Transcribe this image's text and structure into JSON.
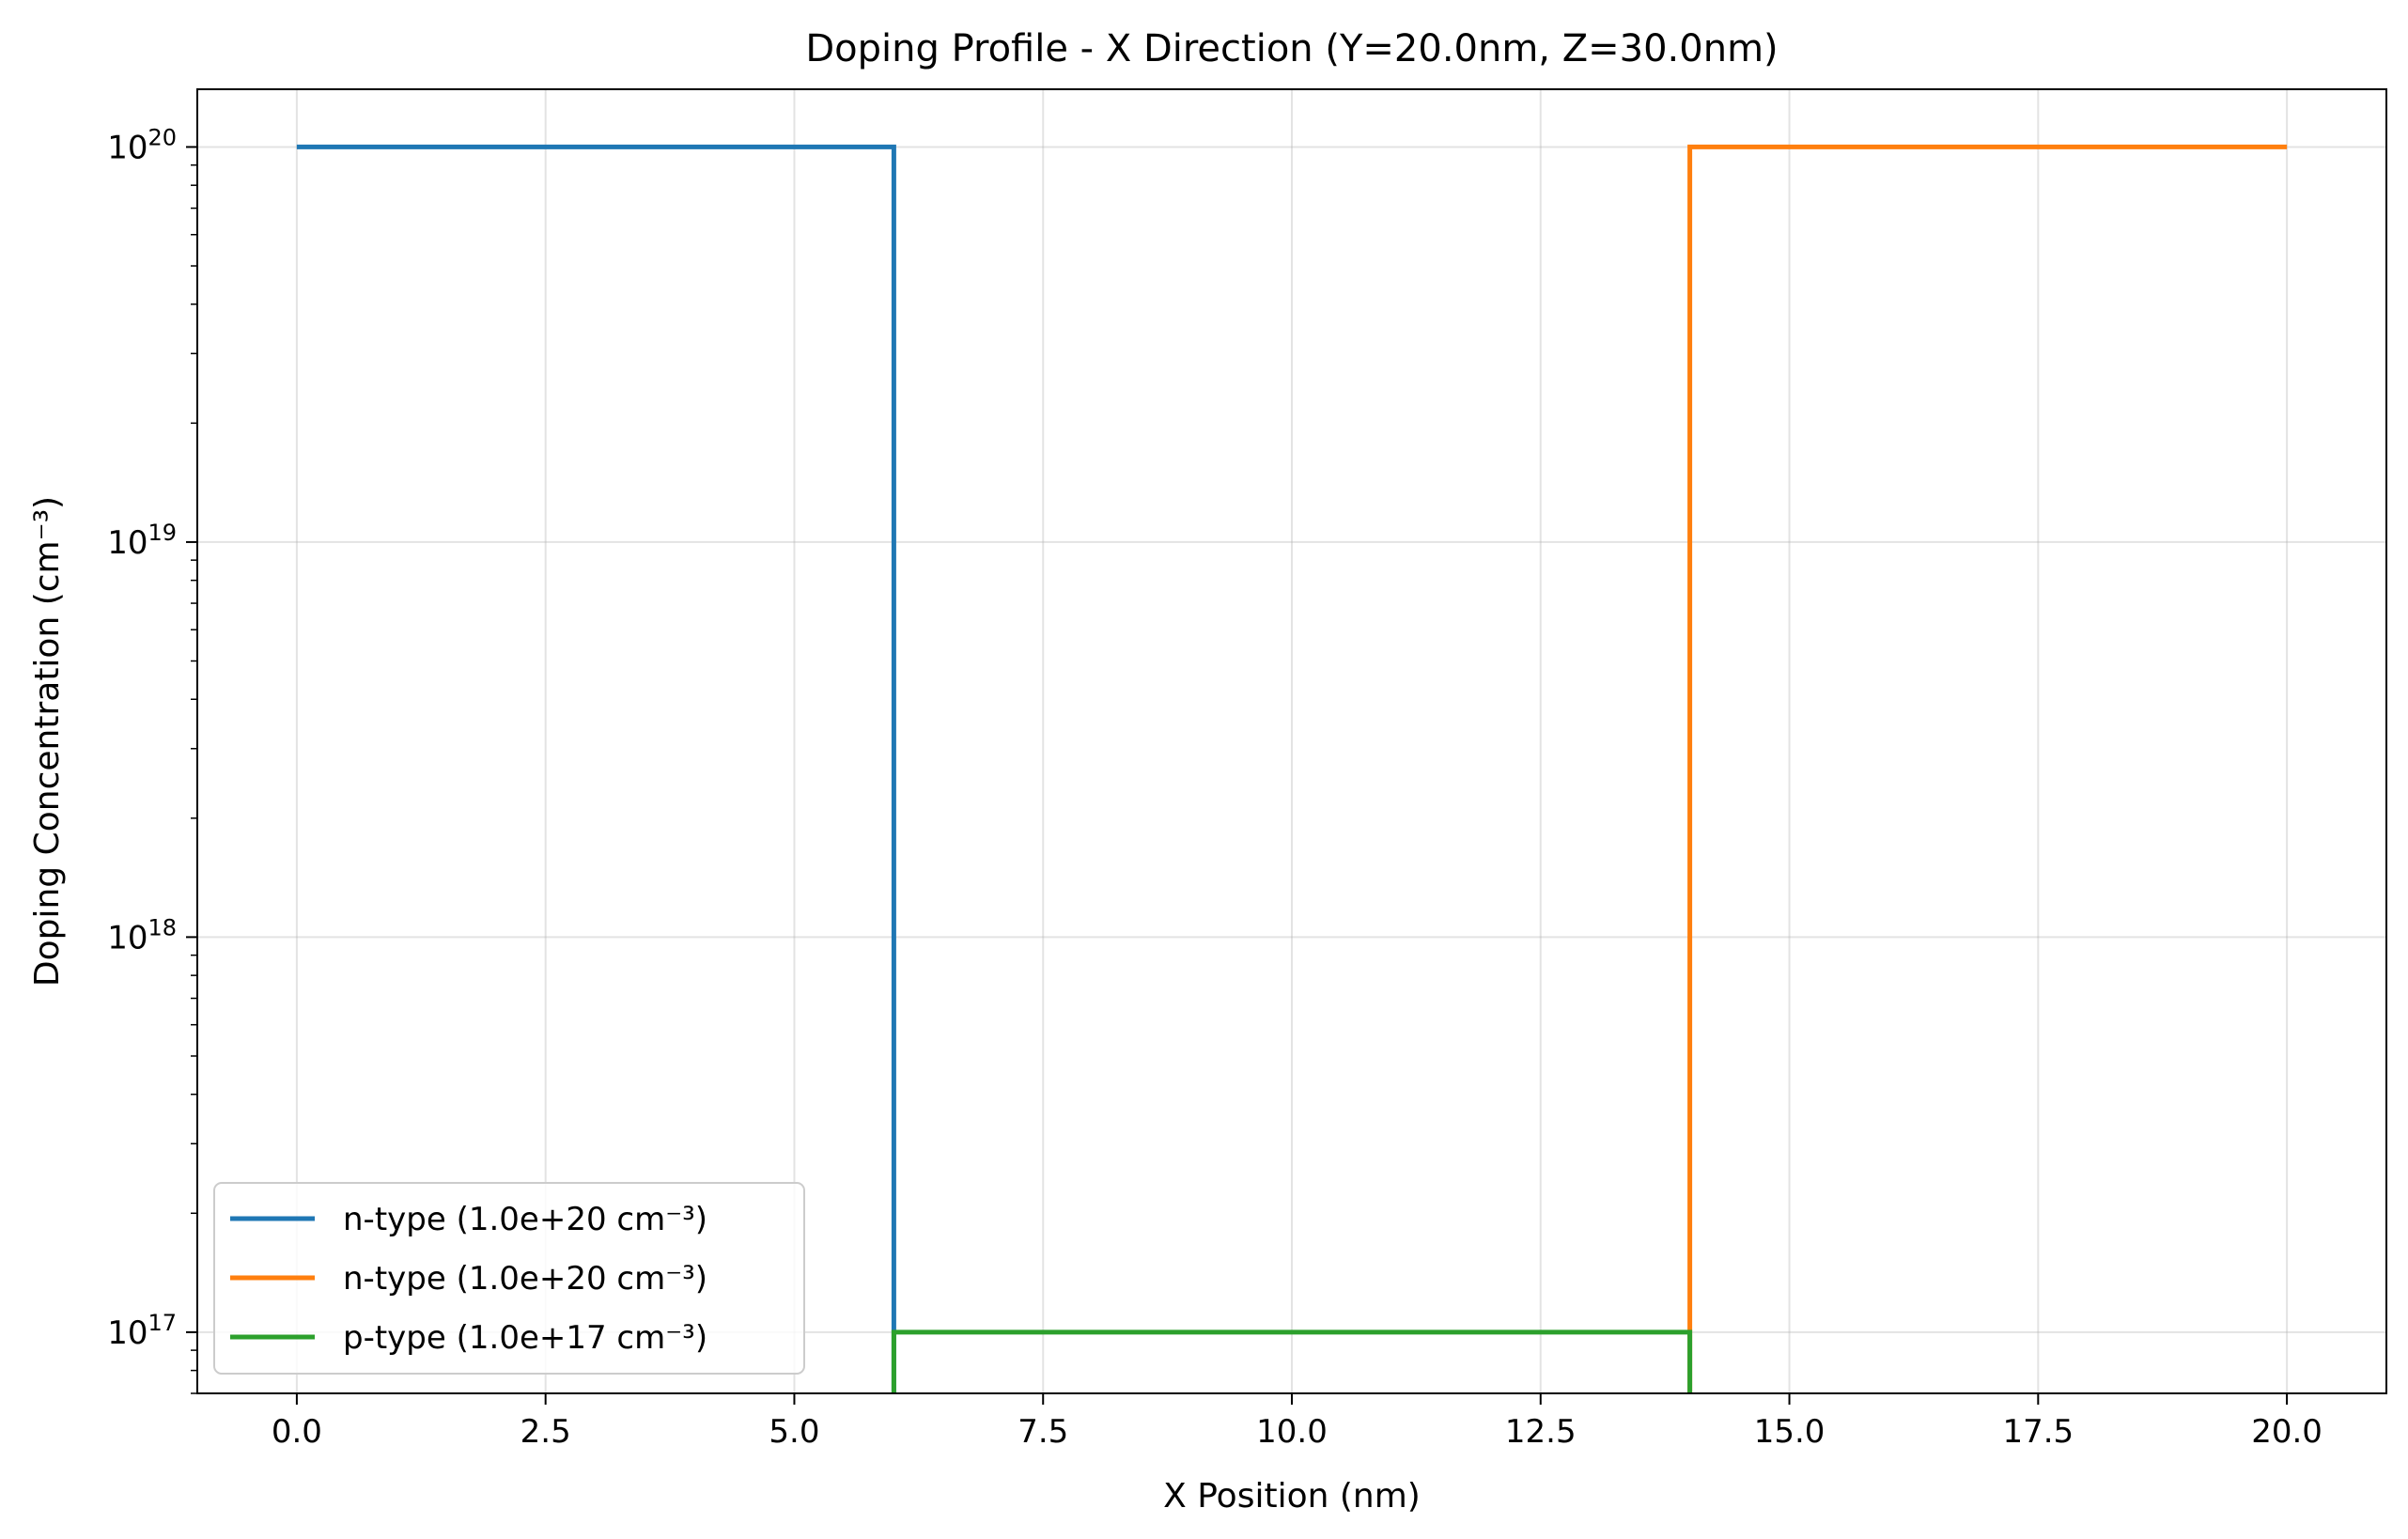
{
  "chart_data": {
    "type": "line",
    "title": "Doping Profile - X Direction (Y=20.0nm, Z=30.0nm)",
    "xlabel": "X Position (nm)",
    "ylabel": "Doping Concentration (cm⁻³)",
    "xscale": "linear",
    "yscale": "log",
    "xlim": [
      -1.0,
      21.0
    ],
    "ylim": [
      7e+16,
      1.4e+20
    ],
    "xticks": [
      0.0,
      2.5,
      5.0,
      7.5,
      10.0,
      12.5,
      15.0,
      17.5,
      20.0
    ],
    "xtick_labels": [
      "0.0",
      "2.5",
      "5.0",
      "7.5",
      "10.0",
      "12.5",
      "15.0",
      "17.5",
      "20.0"
    ],
    "yticks": [
      1e+17,
      1e+18,
      1e+19,
      1e+20
    ],
    "ytick_labels": [
      {
        "base": "10",
        "exp": "17"
      },
      {
        "base": "10",
        "exp": "18"
      },
      {
        "base": "10",
        "exp": "19"
      },
      {
        "base": "10",
        "exp": "20"
      }
    ],
    "grid": true,
    "legend_position": "lower-left",
    "series": [
      {
        "name": "n-type (1.0e+20 cm⁻³)",
        "color": "#1f77b4",
        "points": [
          [
            0,
            1e+20
          ],
          [
            6,
            1e+20
          ],
          [
            6,
            7e+16
          ]
        ]
      },
      {
        "name": "n-type (1.0e+20 cm⁻³)",
        "color": "#ff7f0e",
        "points": [
          [
            14,
            7e+16
          ],
          [
            14,
            1e+20
          ],
          [
            20,
            1e+20
          ]
        ]
      },
      {
        "name": "p-type (1.0e+17 cm⁻³)",
        "color": "#2ca02c",
        "points": [
          [
            6,
            7e+16
          ],
          [
            6,
            1e+17
          ],
          [
            14,
            1e+17
          ],
          [
            14,
            7e+16
          ]
        ]
      }
    ]
  }
}
